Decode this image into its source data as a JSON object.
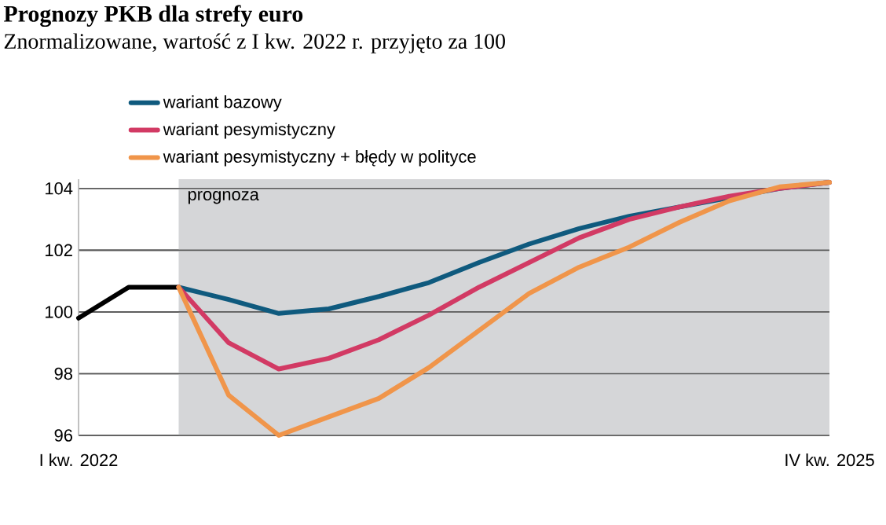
{
  "chart_data": {
    "type": "line",
    "title": "Prognozy PKB dla strefy euro",
    "subtitle": "Znormalizowane, wartość z I kw. 2022 r. przyjęto za 100",
    "categories": [
      "I kw. 2022",
      null,
      null,
      null,
      null,
      null,
      null,
      null,
      null,
      null,
      null,
      null,
      null,
      null,
      null,
      "IV kw. 2025"
    ],
    "series": [
      {
        "color": "#000000",
        "values": [
          99.8,
          100.8,
          100.8,
          null,
          null,
          null,
          null,
          null,
          null,
          null,
          null,
          null,
          null,
          null,
          null,
          null
        ]
      },
      {
        "name": "wariant bazowy",
        "color": "#0f5a7e",
        "values": [
          null,
          null,
          100.8,
          100.4,
          99.95,
          100.1,
          100.5,
          100.95,
          101.6,
          102.2,
          102.7,
          103.1,
          103.4,
          103.7,
          104.0,
          104.2
        ]
      },
      {
        "name": "wariant pesymistyczny",
        "color": "#d23a64",
        "values": [
          null,
          null,
          100.8,
          99.0,
          98.15,
          98.5,
          99.1,
          99.9,
          100.8,
          101.6,
          102.4,
          103.0,
          103.4,
          103.75,
          104.0,
          104.2
        ]
      },
      {
        "name": "wariant pesymistyczny + błędy w polityce",
        "color": "#f0954a",
        "values": [
          null,
          null,
          100.8,
          97.3,
          96.0,
          96.6,
          97.2,
          98.2,
          99.4,
          100.6,
          101.45,
          102.1,
          102.9,
          103.6,
          104.05,
          104.2
        ]
      }
    ],
    "ylim": [
      96,
      104.3
    ],
    "yticks": [
      96,
      98,
      100,
      102,
      104
    ],
    "grid": "y",
    "legend": "top left",
    "annotations": [
      "prognoza"
    ]
  }
}
